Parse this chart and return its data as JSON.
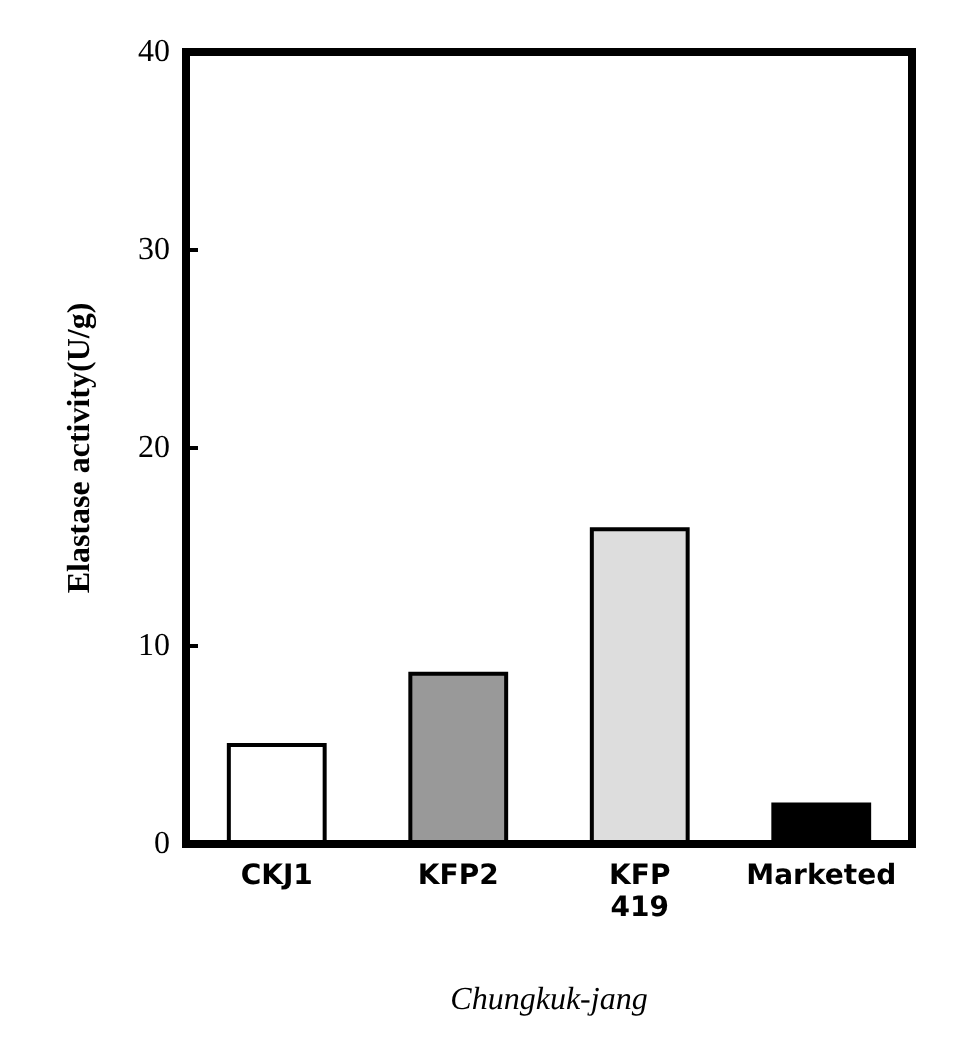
{
  "chart_data": {
    "type": "bar",
    "xlabel": "Chungkuk-jang",
    "ylabel": "Elastase activity(U/g)",
    "categories": [
      "CKJ1",
      "KFP2",
      "KFP\n419",
      "Marketed"
    ],
    "values": [
      5.1,
      8.7,
      16.0,
      2.1
    ],
    "colors": [
      "#ffffff",
      "#999999",
      "#dddddd",
      "#000000"
    ],
    "ylim": [
      0,
      40
    ],
    "yticks": [
      0,
      10,
      20,
      30,
      40
    ]
  }
}
